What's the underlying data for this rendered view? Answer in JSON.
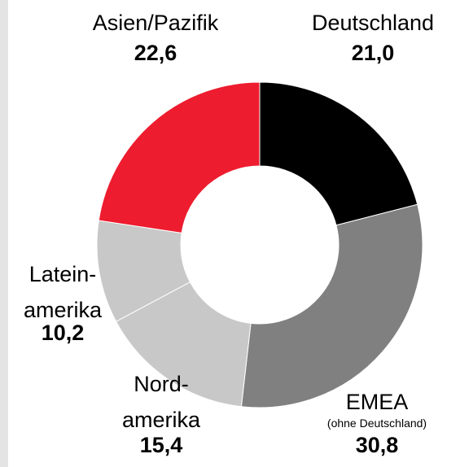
{
  "chart_data": {
    "type": "donut",
    "categories": [
      "Deutschland",
      "EMEA",
      "Nord-\namerika",
      "Latein-\namerika",
      "Asien/Pazifik"
    ],
    "values": [
      21.0,
      30.8,
      15.4,
      10.2,
      22.6
    ],
    "value_labels": [
      "21,0",
      "30,8",
      "15,4",
      "10,2",
      "22,6"
    ],
    "colors": [
      "#000000",
      "#808080",
      "#c8c8c8",
      "#c8c8c8",
      "#ed1c2e"
    ],
    "annotations": [
      "(ohne Deutschland)"
    ]
  }
}
